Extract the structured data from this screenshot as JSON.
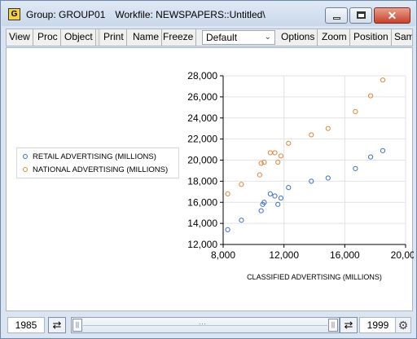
{
  "window": {
    "icon_letter": "G",
    "title": "Group: GROUP01",
    "workfile": "Workfile: NEWSPAPERS::Untitled\\"
  },
  "toolbar": {
    "view": "View",
    "proc": "Proc",
    "object": "Object",
    "print": "Print",
    "name": "Name",
    "freeze": "Freeze",
    "template": "Default",
    "options": "Options",
    "zoom": "Zoom",
    "position": "Position",
    "sample": "Sam"
  },
  "chart_data": {
    "type": "scatter",
    "xlabel": "CLASSIFIED ADVERTISING (MILLIONS)",
    "ylabel": "",
    "xlim": [
      8000,
      20000
    ],
    "ylim": [
      12000,
      28000
    ],
    "xticks": [
      8000,
      12000,
      16000,
      20000
    ],
    "yticks": [
      12000,
      14000,
      16000,
      18000,
      20000,
      22000,
      24000,
      26000,
      28000
    ],
    "xtick_labels": [
      "8,000",
      "12,000",
      "16,000",
      "20,000"
    ],
    "ytick_labels": [
      "12,000",
      "14,000",
      "16,000",
      "18,000",
      "20,000",
      "22,000",
      "24,000",
      "26,000",
      "28,000"
    ],
    "grid": true,
    "legend_position": "left",
    "series": [
      {
        "name": "RETAIL ADVERTISING (MILLIONS)",
        "color": "#3d6fc4",
        "points": [
          [
            8300,
            13400
          ],
          [
            9200,
            14300
          ],
          [
            10500,
            15200
          ],
          [
            10600,
            15800
          ],
          [
            10700,
            16000
          ],
          [
            11100,
            16800
          ],
          [
            11400,
            16600
          ],
          [
            11600,
            15800
          ],
          [
            11800,
            16400
          ],
          [
            12300,
            17400
          ],
          [
            13800,
            18000
          ],
          [
            14900,
            18300
          ],
          [
            16700,
            19200
          ],
          [
            17700,
            20300
          ],
          [
            18500,
            20900
          ]
        ]
      },
      {
        "name": "NATIONAL ADVERTISING (MILLIONS)",
        "color": "#e0873a",
        "points": [
          [
            8300,
            16800
          ],
          [
            9200,
            17700
          ],
          [
            10400,
            18600
          ],
          [
            10500,
            19700
          ],
          [
            10700,
            19800
          ],
          [
            11100,
            20700
          ],
          [
            11400,
            20700
          ],
          [
            11600,
            19800
          ],
          [
            11800,
            20400
          ],
          [
            12300,
            21600
          ],
          [
            13800,
            22400
          ],
          [
            14900,
            23000
          ],
          [
            16700,
            24600
          ],
          [
            17700,
            26100
          ],
          [
            18500,
            27600
          ]
        ]
      }
    ]
  },
  "footer": {
    "start_year": "1985",
    "end_year": "1999"
  }
}
